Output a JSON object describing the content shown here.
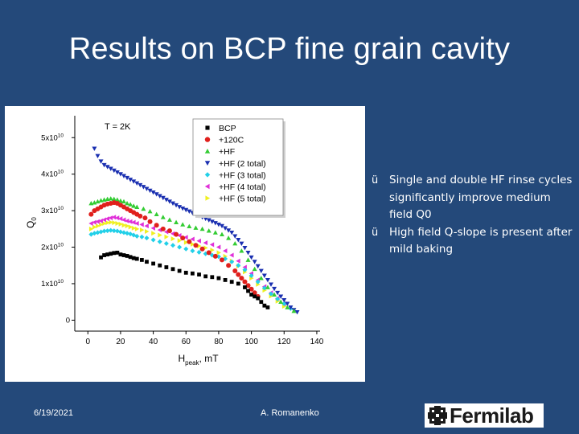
{
  "slide": {
    "title": "Results on BCP fine grain cavity",
    "date": "6/19/2021",
    "author": "A. Romanenko",
    "logo_text": "Fermilab"
  },
  "bullets": [
    "Single and double HF rinse cycles significantly improve medium field Q0",
    "High field Q-slope is present after mild baking"
  ],
  "colors": {
    "background": "#24497a",
    "BCP": "#000000",
    "+120C": "#e0201c",
    "+HF": "#33cc33",
    "+HF (2 total)": "#1a2fb0",
    "+HF (3 total)": "#22d0e8",
    "+HF (4 total)": "#e030d8",
    "+HF (5 total)": "#f0f020"
  },
  "chart_data": {
    "type": "scatter",
    "annotation": "T = 2K",
    "xlabel_main": "H",
    "xlabel_sub": "peak",
    "xlabel_unit": ", mT",
    "ylabel_main": "Q",
    "ylabel_sub": "0",
    "xlim": [
      -8,
      142
    ],
    "ylim": [
      -3000000000.0,
      56000000000.0
    ],
    "xticks": [
      0,
      20,
      40,
      60,
      80,
      100,
      120,
      140
    ],
    "yticks": [
      {
        "v": 0,
        "m": "0",
        "e": ""
      },
      {
        "v": 10000000000.0,
        "m": "1x10",
        "e": "10"
      },
      {
        "v": 20000000000.0,
        "m": "2x10",
        "e": "10"
      },
      {
        "v": 30000000000.0,
        "m": "3x10",
        "e": "10"
      },
      {
        "v": 40000000000.0,
        "m": "4x10",
        "e": "10"
      },
      {
        "v": 50000000000.0,
        "m": "5x10",
        "e": "10"
      }
    ],
    "legend_position": "top-right",
    "series": [
      {
        "name": "BCP",
        "marker": "square",
        "color": "#000000",
        "x": [
          8,
          10,
          12,
          14,
          16,
          18,
          20,
          22,
          24,
          26,
          28,
          30,
          33,
          36,
          40,
          44,
          48,
          52,
          56,
          60,
          64,
          68,
          72,
          76,
          80,
          84,
          88,
          92,
          96,
          98,
          100,
          102,
          104,
          106,
          108,
          110
        ],
        "y": [
          17200000000.0,
          17800000000.0,
          18000000000.0,
          18200000000.0,
          18400000000.0,
          18500000000.0,
          18000000000.0,
          17800000000.0,
          17600000000.0,
          17300000000.0,
          17000000000.0,
          16800000000.0,
          16500000000.0,
          16000000000.0,
          15500000000.0,
          15000000000.0,
          14500000000.0,
          14000000000.0,
          13500000000.0,
          13000000000.0,
          12800000000.0,
          12500000000.0,
          12000000000.0,
          11800000000.0,
          11500000000.0,
          11000000000.0,
          10500000000.0,
          10000000000.0,
          9000000000.0,
          8000000000.0,
          7000000000.0,
          6500000000.0,
          6000000000.0,
          5000000000.0,
          4000000000.0,
          3500000000.0
        ]
      },
      {
        "name": "+120C",
        "marker": "circle",
        "color": "#e0201c",
        "x": [
          2,
          4,
          6,
          8,
          10,
          12,
          14,
          16,
          18,
          20,
          22,
          24,
          26,
          28,
          30,
          32,
          35,
          38,
          42,
          46,
          50,
          54,
          58,
          62,
          66,
          70,
          74,
          78,
          82,
          86,
          90,
          92,
          94,
          96,
          98,
          100,
          102,
          104
        ],
        "y": [
          29000000000.0,
          30000000000.0,
          30500000000.0,
          31000000000.0,
          31500000000.0,
          31800000000.0,
          32000000000.0,
          32200000000.0,
          32000000000.0,
          31500000000.0,
          31000000000.0,
          30500000000.0,
          30000000000.0,
          29500000000.0,
          29000000000.0,
          28500000000.0,
          28000000000.0,
          27000000000.0,
          26000000000.0,
          25000000000.0,
          24500000000.0,
          23500000000.0,
          22500000000.0,
          21500000000.0,
          20500000000.0,
          19500000000.0,
          18500000000.0,
          17500000000.0,
          16500000000.0,
          15000000000.0,
          13500000000.0,
          12500000000.0,
          11500000000.0,
          10500000000.0,
          9500000000.0,
          8500000000.0,
          7500000000.0,
          6500000000.0
        ]
      },
      {
        "name": "+HF",
        "marker": "triangle-up",
        "color": "#33cc33",
        "x": [
          2,
          4,
          6,
          8,
          10,
          12,
          14,
          16,
          18,
          20,
          22,
          24,
          26,
          28,
          30,
          34,
          38,
          42,
          46,
          50,
          54,
          58,
          62,
          66,
          70,
          74,
          78,
          82,
          86,
          90,
          94,
          98,
          102,
          106,
          110,
          114,
          118,
          122,
          126
        ],
        "y": [
          32000000000.0,
          32200000000.0,
          32500000000.0,
          32800000000.0,
          33000000000.0,
          33200000000.0,
          33300000000.0,
          33200000000.0,
          33000000000.0,
          32700000000.0,
          32500000000.0,
          32000000000.0,
          31700000000.0,
          31300000000.0,
          31000000000.0,
          30500000000.0,
          29800000000.0,
          29000000000.0,
          28200000000.0,
          27500000000.0,
          26800000000.0,
          26200000000.0,
          25700000000.0,
          25300000000.0,
          25000000000.0,
          24500000000.0,
          24000000000.0,
          23500000000.0,
          22500000000.0,
          21000000000.0,
          19000000000.0,
          16500000000.0,
          14000000000.0,
          11500000000.0,
          9000000000.0,
          7000000000.0,
          5000000000.0,
          3500000000.0,
          2500000000.0
        ]
      },
      {
        "name": "+HF (2 total)",
        "marker": "triangle-down",
        "color": "#1a2fb0",
        "x": [
          4,
          6,
          8,
          10,
          12,
          14,
          16,
          18,
          20,
          22,
          24,
          26,
          28,
          30,
          32,
          34,
          36,
          38,
          40,
          42,
          44,
          46,
          48,
          50,
          52,
          54,
          56,
          58,
          60,
          62,
          64,
          66,
          68,
          70,
          72,
          74,
          76,
          78,
          80,
          82,
          84,
          86,
          88,
          90,
          92,
          94,
          96,
          98,
          100,
          102,
          104,
          106,
          108,
          110,
          112,
          114,
          116,
          118,
          120,
          122,
          124,
          126,
          128
        ],
        "y": [
          47000000000.0,
          45000000000.0,
          43500000000.0,
          42500000000.0,
          42000000000.0,
          41500000000.0,
          41000000000.0,
          40500000000.0,
          40000000000.0,
          39500000000.0,
          39000000000.0,
          38500000000.0,
          38000000000.0,
          37500000000.0,
          37000000000.0,
          36500000000.0,
          36000000000.0,
          35500000000.0,
          35000000000.0,
          34500000000.0,
          34000000000.0,
          33500000000.0,
          33000000000.0,
          32500000000.0,
          32000000000.0,
          31500000000.0,
          31000000000.0,
          30600000000.0,
          30200000000.0,
          29800000000.0,
          29400000000.0,
          29000000000.0,
          28600000000.0,
          28200000000.0,
          27800000000.0,
          27400000000.0,
          27000000000.0,
          26600000000.0,
          26200000000.0,
          25800000000.0,
          25200000000.0,
          24600000000.0,
          24000000000.0,
          23000000000.0,
          22000000000.0,
          21000000000.0,
          19800000000.0,
          18500000000.0,
          17200000000.0,
          16000000000.0,
          14800000000.0,
          13500000000.0,
          12200000000.0,
          11000000000.0,
          9800000000.0,
          8600000000.0,
          7500000000.0,
          6500000000.0,
          5500000000.0,
          4500000000.0,
          3500000000.0,
          2800000000.0,
          2200000000.0
        ]
      },
      {
        "name": "+HF (3 total)",
        "marker": "diamond",
        "color": "#22d0e8",
        "x": [
          2,
          4,
          6,
          8,
          10,
          12,
          14,
          16,
          18,
          20,
          22,
          24,
          26,
          28,
          30,
          33,
          36,
          40,
          44,
          48,
          52,
          56,
          60,
          64,
          68,
          72,
          76,
          80,
          84,
          88,
          92,
          96,
          100,
          104,
          108,
          112,
          116,
          120,
          124
        ],
        "y": [
          23500000000.0,
          23800000000.0,
          24000000000.0,
          24200000000.0,
          24400000000.0,
          24500000000.0,
          24600000000.0,
          24500000000.0,
          24400000000.0,
          24200000000.0,
          24000000000.0,
          23800000000.0,
          23600000000.0,
          23300000000.0,
          23000000000.0,
          22800000000.0,
          22500000000.0,
          22000000000.0,
          21500000000.0,
          21000000000.0,
          20500000000.0,
          20000000000.0,
          19500000000.0,
          19000000000.0,
          18600000000.0,
          18200000000.0,
          17800000000.0,
          17400000000.0,
          16800000000.0,
          16000000000.0,
          15000000000.0,
          13800000000.0,
          12200000000.0,
          10500000000.0,
          8800000000.0,
          7200000000.0,
          5800000000.0,
          4500000000.0,
          3200000000.0
        ]
      },
      {
        "name": "+HF (4 total)",
        "marker": "triangle-left",
        "color": "#e030d8",
        "x": [
          2,
          4,
          6,
          8,
          10,
          12,
          14,
          16,
          18,
          20,
          22,
          24,
          26,
          28,
          30,
          33,
          36,
          40,
          44,
          48,
          52,
          56,
          60,
          64,
          68,
          72,
          76,
          80,
          84,
          88,
          92,
          96,
          100,
          104,
          108,
          112,
          116,
          120
        ],
        "y": [
          26500000000.0,
          26800000000.0,
          27000000000.0,
          27200000000.0,
          27500000000.0,
          27800000000.0,
          28000000000.0,
          28200000000.0,
          28000000000.0,
          27800000000.0,
          27500000000.0,
          27200000000.0,
          27000000000.0,
          26800000000.0,
          26500000000.0,
          26200000000.0,
          25800000000.0,
          25200000000.0,
          24700000000.0,
          24200000000.0,
          23700000000.0,
          23200000000.0,
          22700000000.0,
          22200000000.0,
          21700000000.0,
          21200000000.0,
          20700000000.0,
          20000000000.0,
          19000000000.0,
          17800000000.0,
          16200000000.0,
          14500000000.0,
          12800000000.0,
          11000000000.0,
          9200000000.0,
          7500000000.0,
          6000000000.0,
          4500000000.0
        ]
      },
      {
        "name": "+HF (5 total)",
        "marker": "triangle-right",
        "color": "#f0f020",
        "x": [
          2,
          4,
          6,
          8,
          10,
          12,
          14,
          16,
          18,
          20,
          22,
          24,
          26,
          28,
          30,
          33,
          36,
          40,
          44,
          48,
          52,
          56,
          60,
          64,
          68,
          72,
          76,
          80,
          84,
          88,
          92,
          96,
          100,
          104,
          108,
          112,
          116,
          120
        ],
        "y": [
          25000000000.0,
          25500000000.0,
          25800000000.0,
          26200000000.0,
          26500000000.0,
          26700000000.0,
          26800000000.0,
          26700000000.0,
          26500000000.0,
          26300000000.0,
          26000000000.0,
          25800000000.0,
          25500000000.0,
          25200000000.0,
          25000000000.0,
          24700000000.0,
          24300000000.0,
          23800000000.0,
          23300000000.0,
          22800000000.0,
          22300000000.0,
          21800000000.0,
          21300000000.0,
          20800000000.0,
          20300000000.0,
          19800000000.0,
          19200000000.0,
          18500000000.0,
          17500000000.0,
          16200000000.0,
          14800000000.0,
          13200000000.0,
          11500000000.0,
          9800000000.0,
          8200000000.0,
          6600000000.0,
          5200000000.0,
          3800000000.0
        ]
      }
    ]
  }
}
